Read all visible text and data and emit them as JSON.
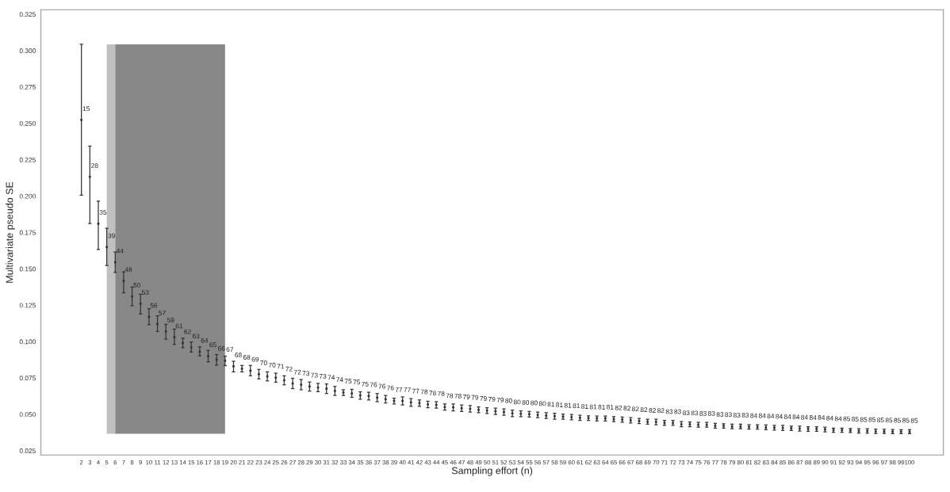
{
  "chart_data": {
    "type": "scatter",
    "xlabel": "Sampling effort (n)",
    "ylabel": "Multivariate pseudo SE",
    "x": [
      2,
      3,
      4,
      5,
      6,
      7,
      8,
      9,
      10,
      11,
      12,
      13,
      14,
      15,
      16,
      17,
      18,
      19,
      20,
      21,
      22,
      23,
      24,
      25,
      26,
      27,
      28,
      29,
      30,
      31,
      32,
      33,
      34,
      35,
      36,
      37,
      38,
      39,
      40,
      41,
      42,
      43,
      44,
      45,
      46,
      47,
      48,
      49,
      50,
      51,
      52,
      53,
      54,
      55,
      56,
      57,
      58,
      59,
      60,
      61,
      62,
      63,
      64,
      65,
      66,
      67,
      68,
      69,
      70,
      71,
      72,
      73,
      74,
      75,
      76,
      77,
      78,
      79,
      80,
      81,
      82,
      83,
      84,
      85,
      86,
      87,
      88,
      89,
      90,
      91,
      92,
      93,
      94,
      95,
      96,
      97,
      98,
      99,
      100
    ],
    "values": [
      0.2523,
      0.2132,
      0.181,
      0.165,
      0.1545,
      0.1417,
      0.131,
      0.126,
      0.117,
      0.112,
      0.107,
      0.103,
      0.099,
      0.096,
      0.093,
      0.09,
      0.0875,
      0.0868,
      0.083,
      0.0814,
      0.08,
      0.0776,
      0.0761,
      0.0752,
      0.0734,
      0.0712,
      0.0704,
      0.0691,
      0.0684,
      0.0676,
      0.0661,
      0.065,
      0.0644,
      0.063,
      0.0626,
      0.0615,
      0.0604,
      0.0592,
      0.0592,
      0.0582,
      0.0577,
      0.0568,
      0.0565,
      0.055,
      0.0548,
      0.0542,
      0.0538,
      0.0531,
      0.0526,
      0.0521,
      0.0516,
      0.0507,
      0.0504,
      0.0501,
      0.0496,
      0.0491,
      0.0487,
      0.0484,
      0.0481,
      0.0476,
      0.0474,
      0.0472,
      0.0472,
      0.0467,
      0.0464,
      0.0459,
      0.0454,
      0.0449,
      0.0448,
      0.0441,
      0.0441,
      0.0432,
      0.0431,
      0.0428,
      0.0428,
      0.0422,
      0.0421,
      0.0416,
      0.0416,
      0.0413,
      0.0413,
      0.041,
      0.0408,
      0.0406,
      0.0404,
      0.0402,
      0.04,
      0.04,
      0.0396,
      0.0392,
      0.0392,
      0.0389,
      0.0386,
      0.0386,
      0.0383,
      0.0382,
      0.0381,
      0.0381,
      0.038
    ],
    "errors": [
      [
        0.2006,
        0.3043
      ],
      [
        0.1812,
        0.2344
      ],
      [
        0.1633,
        0.1966
      ],
      [
        0.1523,
        0.1779
      ],
      [
        0.1475,
        0.1615
      ],
      [
        0.1335,
        0.148
      ],
      [
        0.1247,
        0.1375
      ],
      [
        0.119,
        0.1326
      ],
      [
        0.1116,
        0.1226
      ],
      [
        0.1069,
        0.1177
      ],
      [
        0.1016,
        0.1119
      ],
      [
        0.0981,
        0.1086
      ],
      [
        0.0958,
        0.1024
      ],
      [
        0.0928,
        0.0998
      ],
      [
        0.0902,
        0.0963
      ],
      [
        0.0861,
        0.094
      ],
      [
        0.0839,
        0.0911
      ],
      [
        0.0835,
        0.09
      ],
      [
        0.0792,
        0.0865
      ],
      [
        0.0792,
        0.0836
      ],
      [
        0.0765,
        0.0836
      ],
      [
        0.0744,
        0.0809
      ],
      [
        0.073,
        0.0792
      ],
      [
        0.0721,
        0.0783
      ],
      [
        0.0703,
        0.0765
      ],
      [
        0.0677,
        0.0748
      ],
      [
        0.0669,
        0.0739
      ],
      [
        0.066,
        0.0722
      ],
      [
        0.0656,
        0.0713
      ],
      [
        0.0643,
        0.0709
      ],
      [
        0.063,
        0.0692
      ],
      [
        0.063,
        0.0669
      ],
      [
        0.0617,
        0.0672
      ],
      [
        0.0604,
        0.0655
      ],
      [
        0.0599,
        0.0652
      ],
      [
        0.0587,
        0.0643
      ],
      [
        0.0578,
        0.063
      ],
      [
        0.0572,
        0.0611
      ],
      [
        0.0564,
        0.062
      ],
      [
        0.0555,
        0.0608
      ],
      [
        0.0555,
        0.0599
      ],
      [
        0.0546,
        0.059
      ],
      [
        0.0543,
        0.0587
      ],
      [
        0.0529,
        0.0572
      ],
      [
        0.0524,
        0.0572
      ],
      [
        0.052,
        0.0564
      ],
      [
        0.0516,
        0.056
      ],
      [
        0.0511,
        0.0551
      ],
      [
        0.0506,
        0.0546
      ],
      [
        0.0499,
        0.0543
      ],
      [
        0.0494,
        0.0538
      ],
      [
        0.0485,
        0.0529
      ],
      [
        0.0485,
        0.0524
      ],
      [
        0.0482,
        0.052
      ],
      [
        0.0477,
        0.0516
      ],
      [
        0.0472,
        0.0511
      ],
      [
        0.0467,
        0.0508
      ],
      [
        0.0467,
        0.0502
      ],
      [
        0.0463,
        0.0499
      ],
      [
        0.0458,
        0.0494
      ],
      [
        0.0458,
        0.049
      ],
      [
        0.0455,
        0.0489
      ],
      [
        0.0455,
        0.0489
      ],
      [
        0.045,
        0.0485
      ],
      [
        0.0446,
        0.0482
      ],
      [
        0.0441,
        0.0477
      ],
      [
        0.0437,
        0.0472
      ],
      [
        0.0432,
        0.0467
      ],
      [
        0.0429,
        0.0467
      ],
      [
        0.0424,
        0.0459
      ],
      [
        0.0424,
        0.0459
      ],
      [
        0.0415,
        0.045
      ],
      [
        0.0415,
        0.0447
      ],
      [
        0.0412,
        0.0445
      ],
      [
        0.0412,
        0.0445
      ],
      [
        0.0406,
        0.0438
      ],
      [
        0.0406,
        0.0436
      ],
      [
        0.0401,
        0.0432
      ],
      [
        0.0401,
        0.0432
      ],
      [
        0.0398,
        0.0429
      ],
      [
        0.0398,
        0.0429
      ],
      [
        0.0394,
        0.0427
      ],
      [
        0.0392,
        0.0424
      ],
      [
        0.0389,
        0.0424
      ],
      [
        0.0389,
        0.0419
      ],
      [
        0.0385,
        0.0419
      ],
      [
        0.0384,
        0.0415
      ],
      [
        0.0384,
        0.0415
      ],
      [
        0.038,
        0.0412
      ],
      [
        0.0377,
        0.0406
      ],
      [
        0.0377,
        0.0406
      ],
      [
        0.0375,
        0.0403
      ],
      [
        0.0371,
        0.0401
      ],
      [
        0.0371,
        0.0401
      ],
      [
        0.0368,
        0.0398
      ],
      [
        0.0368,
        0.0397
      ],
      [
        0.0367,
        0.0396
      ],
      [
        0.0367,
        0.0395
      ],
      [
        0.0367,
        0.0394
      ]
    ],
    "annotations": [
      {
        "text": "15",
        "x": 2,
        "y": 0.2523
      },
      {
        "text": "28",
        "x": 3,
        "y": 0.2132
      },
      {
        "text": "35",
        "x": 4,
        "y": 0.181
      },
      {
        "text": "39",
        "x": 5,
        "y": 0.165
      },
      {
        "text": "44",
        "x": 6,
        "y": 0.1545
      },
      {
        "text": "48",
        "x": 7,
        "y": 0.1417
      },
      {
        "text": "50",
        "x": 8,
        "y": 0.131
      },
      {
        "text": "53",
        "x": 9,
        "y": 0.126
      },
      {
        "text": "56",
        "x": 10,
        "y": 0.117
      },
      {
        "text": "57",
        "x": 11,
        "y": 0.112
      },
      {
        "text": "59",
        "x": 12,
        "y": 0.107
      },
      {
        "text": "61",
        "x": 13,
        "y": 0.103
      },
      {
        "text": "62",
        "x": 14,
        "y": 0.099
      },
      {
        "text": "63",
        "x": 15,
        "y": 0.096
      },
      {
        "text": "64",
        "x": 16,
        "y": 0.093
      },
      {
        "text": "65",
        "x": 17,
        "y": 0.09
      },
      {
        "text": "66",
        "x": 18,
        "y": 0.0875
      },
      {
        "text": "67",
        "x": 19,
        "y": 0.0868
      },
      {
        "text": "68",
        "x": 20,
        "y": 0.083
      },
      {
        "text": "68",
        "x": 21,
        "y": 0.0814
      },
      {
        "text": "69",
        "x": 22,
        "y": 0.08
      },
      {
        "text": "70",
        "x": 23,
        "y": 0.0776
      },
      {
        "text": "70",
        "x": 24,
        "y": 0.0761
      },
      {
        "text": "71",
        "x": 25,
        "y": 0.0752
      },
      {
        "text": "72",
        "x": 26,
        "y": 0.0734
      },
      {
        "text": "72",
        "x": 27,
        "y": 0.0712
      },
      {
        "text": "73",
        "x": 28,
        "y": 0.0704
      },
      {
        "text": "73",
        "x": 29,
        "y": 0.0691
      },
      {
        "text": "73",
        "x": 30,
        "y": 0.0684
      },
      {
        "text": "74",
        "x": 31,
        "y": 0.0676
      },
      {
        "text": "74",
        "x": 32,
        "y": 0.0661
      },
      {
        "text": "75",
        "x": 33,
        "y": 0.065
      },
      {
        "text": "75",
        "x": 34,
        "y": 0.0644
      },
      {
        "text": "75",
        "x": 35,
        "y": 0.063
      },
      {
        "text": "76",
        "x": 36,
        "y": 0.0626
      },
      {
        "text": "76",
        "x": 37,
        "y": 0.0615
      },
      {
        "text": "76",
        "x": 38,
        "y": 0.0604
      },
      {
        "text": "77",
        "x": 39,
        "y": 0.0592
      },
      {
        "text": "77",
        "x": 40,
        "y": 0.0592
      },
      {
        "text": "77",
        "x": 41,
        "y": 0.0582
      },
      {
        "text": "78",
        "x": 42,
        "y": 0.0577
      },
      {
        "text": "78",
        "x": 43,
        "y": 0.0568
      },
      {
        "text": "78",
        "x": 44,
        "y": 0.0565
      },
      {
        "text": "78",
        "x": 45,
        "y": 0.055
      },
      {
        "text": "78",
        "x": 46,
        "y": 0.0548
      },
      {
        "text": "79",
        "x": 47,
        "y": 0.0542
      },
      {
        "text": "79",
        "x": 48,
        "y": 0.0538
      },
      {
        "text": "79",
        "x": 49,
        "y": 0.0531
      },
      {
        "text": "79",
        "x": 50,
        "y": 0.0526
      },
      {
        "text": "79",
        "x": 51,
        "y": 0.0521
      },
      {
        "text": "80",
        "x": 52,
        "y": 0.0516
      },
      {
        "text": "80",
        "x": 53,
        "y": 0.0507
      },
      {
        "text": "80",
        "x": 54,
        "y": 0.0504
      },
      {
        "text": "80",
        "x": 55,
        "y": 0.0501
      },
      {
        "text": "80",
        "x": 56,
        "y": 0.0496
      },
      {
        "text": "81",
        "x": 57,
        "y": 0.0491
      },
      {
        "text": "81",
        "x": 58,
        "y": 0.0487
      },
      {
        "text": "81",
        "x": 59,
        "y": 0.0484
      },
      {
        "text": "81",
        "x": 60,
        "y": 0.0481
      },
      {
        "text": "81",
        "x": 61,
        "y": 0.0476
      },
      {
        "text": "81",
        "x": 62,
        "y": 0.0474
      },
      {
        "text": "81",
        "x": 63,
        "y": 0.0472
      },
      {
        "text": "81",
        "x": 64,
        "y": 0.0472
      },
      {
        "text": "82",
        "x": 65,
        "y": 0.0467
      },
      {
        "text": "82",
        "x": 66,
        "y": 0.0464
      },
      {
        "text": "82",
        "x": 67,
        "y": 0.0459
      },
      {
        "text": "82",
        "x": 68,
        "y": 0.0454
      },
      {
        "text": "82",
        "x": 69,
        "y": 0.0449
      },
      {
        "text": "82",
        "x": 70,
        "y": 0.0448
      },
      {
        "text": "83",
        "x": 71,
        "y": 0.0441
      },
      {
        "text": "83",
        "x": 72,
        "y": 0.0441
      },
      {
        "text": "83",
        "x": 73,
        "y": 0.0432
      },
      {
        "text": "83",
        "x": 74,
        "y": 0.0431
      },
      {
        "text": "83",
        "x": 75,
        "y": 0.0428
      },
      {
        "text": "83",
        "x": 76,
        "y": 0.0428
      },
      {
        "text": "83",
        "x": 77,
        "y": 0.0422
      },
      {
        "text": "83",
        "x": 78,
        "y": 0.0421
      },
      {
        "text": "83",
        "x": 79,
        "y": 0.0416
      },
      {
        "text": "83",
        "x": 80,
        "y": 0.0416
      },
      {
        "text": "84",
        "x": 81,
        "y": 0.0413
      },
      {
        "text": "84",
        "x": 82,
        "y": 0.0413
      },
      {
        "text": "84",
        "x": 83,
        "y": 0.041
      },
      {
        "text": "84",
        "x": 84,
        "y": 0.0408
      },
      {
        "text": "84",
        "x": 85,
        "y": 0.0406
      },
      {
        "text": "84",
        "x": 86,
        "y": 0.0404
      },
      {
        "text": "84",
        "x": 87,
        "y": 0.0402
      },
      {
        "text": "84",
        "x": 88,
        "y": 0.04
      },
      {
        "text": "84",
        "x": 89,
        "y": 0.04
      },
      {
        "text": "84",
        "x": 90,
        "y": 0.0396
      },
      {
        "text": "84",
        "x": 91,
        "y": 0.0392
      },
      {
        "text": "85",
        "x": 92,
        "y": 0.0392
      },
      {
        "text": "85",
        "x": 93,
        "y": 0.0389
      },
      {
        "text": "85",
        "x": 94,
        "y": 0.0386
      },
      {
        "text": "85",
        "x": 95,
        "y": 0.0386
      },
      {
        "text": "85",
        "x": 96,
        "y": 0.0383
      },
      {
        "text": "85",
        "x": 97,
        "y": 0.0382
      },
      {
        "text": "85",
        "x": 98,
        "y": 0.0381
      },
      {
        "text": "85",
        "x": 99,
        "y": 0.0381
      },
      {
        "text": "85",
        "x": 100,
        "y": 0.038
      }
    ],
    "color": "#333333",
    "bands": [
      {
        "axis": "x",
        "from": 5,
        "to": 6,
        "color": "#c0c0c0"
      },
      {
        "axis": "x",
        "from": 6,
        "to": 19,
        "color": "#888888"
      }
    ],
    "xlim": [
      -2.8,
      104
    ],
    "xticks": [
      2,
      3,
      4,
      5,
      6,
      7,
      8,
      9,
      10,
      11,
      12,
      13,
      14,
      15,
      16,
      17,
      18,
      19,
      20,
      21,
      22,
      23,
      24,
      25,
      26,
      27,
      28,
      29,
      30,
      31,
      32,
      33,
      34,
      35,
      36,
      37,
      38,
      39,
      40,
      41,
      42,
      43,
      44,
      45,
      46,
      47,
      48,
      49,
      50,
      51,
      52,
      53,
      54,
      55,
      56,
      57,
      58,
      59,
      60,
      61,
      62,
      63,
      64,
      65,
      66,
      67,
      68,
      69,
      70,
      71,
      72,
      73,
      74,
      75,
      76,
      77,
      78,
      79,
      80,
      81,
      82,
      83,
      84,
      85,
      86,
      87,
      88,
      89,
      90,
      91,
      92,
      93,
      94,
      95,
      96,
      97,
      98,
      99,
      100
    ],
    "ylim": [
      0.022,
      0.328
    ],
    "yticks": [
      {
        "value": 0.025,
        "label": "0.025"
      },
      {
        "value": 0.05,
        "label": "0.050"
      },
      {
        "value": 0.075,
        "label": "0.075"
      },
      {
        "value": 0.1,
        "label": "0.100"
      },
      {
        "value": 0.125,
        "label": "0.125"
      },
      {
        "value": 0.15,
        "label": "0.150"
      },
      {
        "value": 0.175,
        "label": "0.175"
      },
      {
        "value": 0.2,
        "label": "0.200"
      },
      {
        "value": 0.225,
        "label": "0.225"
      },
      {
        "value": 0.25,
        "label": "0.250"
      },
      {
        "value": 0.275,
        "label": "0.275"
      },
      {
        "value": 0.3,
        "label": "0.300"
      },
      {
        "value": 0.325,
        "label": "0.325"
      }
    ],
    "marker": "circle",
    "grid": false,
    "legend": false
  }
}
